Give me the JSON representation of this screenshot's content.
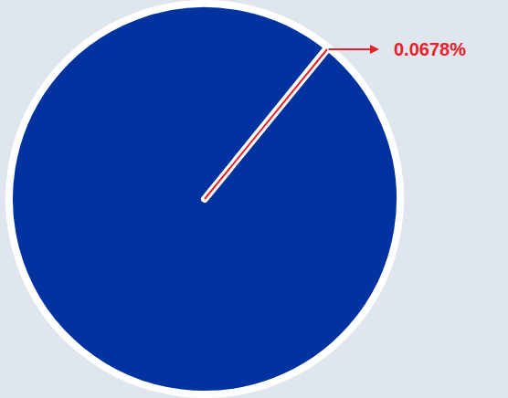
{
  "chart_data": {
    "type": "pie",
    "values": [
      0.0678,
      99.9322
    ],
    "value_labels": [
      "0.0678%",
      null
    ],
    "colors": [
      "#e8202a",
      "#0033a0"
    ]
  }
}
